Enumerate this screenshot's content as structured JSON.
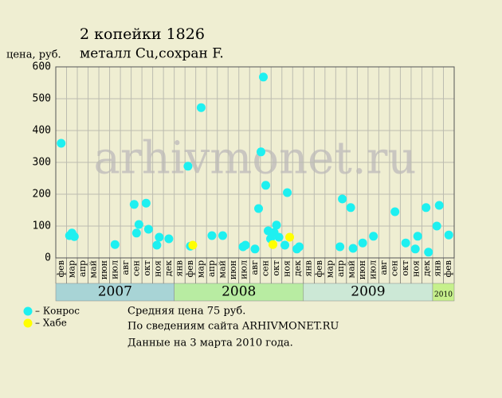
{
  "chart_data": {
    "type": "scatter",
    "title": "2 копейки 1826",
    "subtitle": "металл Cu,сохран F.",
    "y_label": "цена, руб.",
    "watermark": "arhivmonet.ru",
    "ylim": [
      0,
      600
    ],
    "yticks": [
      0,
      100,
      200,
      300,
      400,
      500,
      600
    ],
    "grid": true,
    "x_groups": [
      {
        "label": "2007",
        "color": "#a8d4d6",
        "categories": [
          "фев",
          "мар",
          "апр",
          "май",
          "июн",
          "июл",
          "авг",
          "сен",
          "окт",
          "ноя",
          "дек"
        ]
      },
      {
        "label": "2008",
        "color": "#b8eca2",
        "categories": [
          "янв",
          "фев",
          "мар",
          "апр",
          "май",
          "июн",
          "июл",
          "авг",
          "сен",
          "окт",
          "ноя",
          "дек"
        ]
      },
      {
        "label": "2009",
        "color": "#cce8d6",
        "categories": [
          "янв",
          "фев",
          "мар",
          "апр",
          "май",
          "июн",
          "июл",
          "авг",
          "сен",
          "окт",
          "ноя",
          "дек"
        ]
      },
      {
        "label": "2010",
        "color": "#c6f08c",
        "categories": [
          "янв",
          "фев"
        ]
      }
    ],
    "series": [
      {
        "name": "– Конрос",
        "color": "#1ef0f0",
        "x": [
          "2007-02",
          "2007-03",
          "2007-03",
          "2007-03",
          "2007-07",
          "2007-09",
          "2007-09",
          "2007-09",
          "2007-10",
          "2007-10",
          "2007-11",
          "2007-11",
          "2007-12",
          "2008-02",
          "2008-02",
          "2008-03",
          "2008-04",
          "2008-05",
          "2008-07",
          "2008-07",
          "2008-08",
          "2008-09",
          "2008-09",
          "2008-09",
          "2008-09",
          "2008-09",
          "2008-09",
          "2008-10",
          "2008-10",
          "2008-10",
          "2008-11",
          "2008-11",
          "2008-12",
          "2008-12",
          "2009-04",
          "2009-04",
          "2009-05",
          "2009-05",
          "2009-06",
          "2009-07",
          "2009-09",
          "2009-10",
          "2009-11",
          "2009-11",
          "2009-12",
          "2009-12",
          "2010-01",
          "2010-01",
          "2010-02"
        ],
        "values": [
          360,
          70,
          78,
          67,
          42,
          168,
          78,
          105,
          172,
          90,
          40,
          65,
          60,
          288,
          37,
          472,
          70,
          70,
          35,
          40,
          28,
          155,
          333,
          568,
          228,
          85,
          60,
          80,
          103,
          65,
          40,
          205,
          28,
          35,
          35,
          185,
          158,
          30,
          47,
          68,
          145,
          47,
          28,
          68,
          158,
          18,
          100,
          165,
          72
        ]
      },
      {
        "name": "– Хабе",
        "color": "#ffff00",
        "x": [
          "2008-02",
          "2008-09",
          "2008-11"
        ],
        "values": [
          40,
          42,
          65
        ]
      }
    ],
    "notes": [
      "Средняя цена 75 руб.",
      "По  сведениям сайта ARHIVMONET.RU",
      "Данные на 3 марта 2010 года."
    ]
  }
}
